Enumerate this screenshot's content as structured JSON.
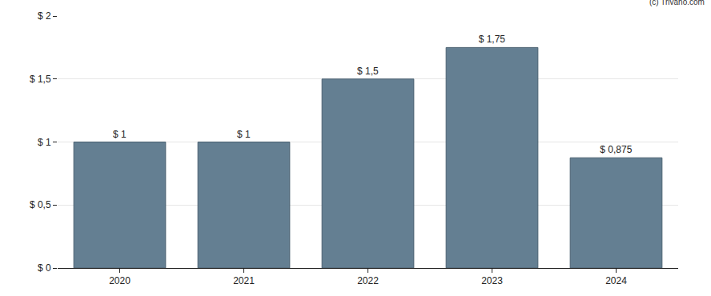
{
  "chart_data": {
    "type": "bar",
    "categories": [
      "2020",
      "2021",
      "2022",
      "2023",
      "2024"
    ],
    "values": [
      1,
      1,
      1.5,
      1.75,
      0.875
    ],
    "value_labels": [
      "$ 1",
      "$ 1",
      "$ 1,5",
      "$ 1,75",
      "$ 0,875"
    ],
    "data_labels": true,
    "color": "#647f92",
    "ylim": [
      0,
      2
    ],
    "yticks": [
      {
        "value": 0,
        "label": "$ 0"
      },
      {
        "value": 0.5,
        "label": "$ 0,5"
      },
      {
        "value": 1,
        "label": "$ 1"
      },
      {
        "value": 1.5,
        "label": "$ 1,5"
      },
      {
        "value": 2,
        "label": "$ 2"
      }
    ],
    "grid": true,
    "annotations": [
      "(c) Trivano.com"
    ]
  }
}
